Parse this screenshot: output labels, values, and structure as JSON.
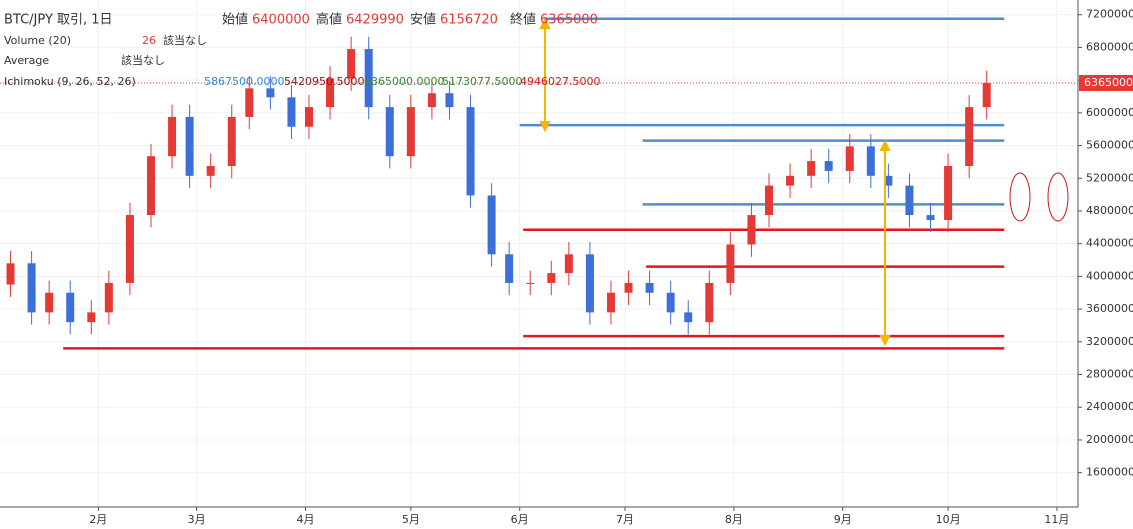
{
  "header": {
    "symbol": "BTC/JPY 取引, 1日",
    "open_label": "始値",
    "open": "6400000",
    "high_label": "高値",
    "high": "6429990",
    "low_label": "安値",
    "low": "6156720",
    "close_label": "終値",
    "close": "6365000",
    "volume_name": "Volume (20)",
    "volume_value": "26",
    "volume_na": "該当なし",
    "average_name": "Average",
    "average_na": "該当なし",
    "ichimoku_name": "Ichimoku (9, 26, 52, 26)",
    "ichimoku_values": [
      "5867500.0000",
      "5420950.5000",
      "6365000.0000",
      "5173077.5000",
      "4946027.5000"
    ]
  },
  "chart_data": {
    "type": "candlestick",
    "up_color": "#e53935",
    "down_color": "#3d6fd8",
    "x": [
      7,
      13,
      18,
      24,
      30,
      35,
      41,
      47,
      53,
      58,
      64,
      70,
      75,
      81,
      87,
      92,
      98,
      104,
      109,
      115,
      121,
      127,
      132,
      138,
      144,
      149,
      155,
      161,
      166,
      172,
      178,
      183,
      189,
      195,
      200,
      206,
      212,
      218,
      223,
      229,
      235,
      240,
      246,
      252,
      257,
      263,
      269,
      274,
      280,
      285
    ],
    "open": [
      3900000,
      4160000,
      3560000,
      3800000,
      3440000,
      3560000,
      3920000,
      4750000,
      5470000,
      5950000,
      5230000,
      5350000,
      5950000,
      6300000,
      6190000,
      5830000,
      6070000,
      6420000,
      6780000,
      6070000,
      5470000,
      6070000,
      6240000,
      6070000,
      4990000,
      4270000,
      3920000,
      3920000,
      4040000,
      4270000,
      3560000,
      3800000,
      3920000,
      3800000,
      3560000,
      3440000,
      3920000,
      4390000,
      4750000,
      5110000,
      5230000,
      5410000,
      5290000,
      5590000,
      5230000,
      5110000,
      4750000,
      4690000,
      5350000,
      6070000
    ],
    "high": [
      4310000,
      4310000,
      3950000,
      3950000,
      3710000,
      4070000,
      4900000,
      5620000,
      6100000,
      6100000,
      5500000,
      6100000,
      6450000,
      6450000,
      6340000,
      6220000,
      6570000,
      6930000,
      6930000,
      6220000,
      6220000,
      6390000,
      6390000,
      6220000,
      5140000,
      4420000,
      4070000,
      4190000,
      4420000,
      4420000,
      3950000,
      4070000,
      4070000,
      3950000,
      3710000,
      4070000,
      4540000,
      4900000,
      5260000,
      5380000,
      5560000,
      5560000,
      5740000,
      5740000,
      5380000,
      5260000,
      4900000,
      5500000,
      6220000,
      6515000
    ],
    "low": [
      3750000,
      3410000,
      3410000,
      3290000,
      3290000,
      3410000,
      3770000,
      4600000,
      5320000,
      5080000,
      5080000,
      5200000,
      5800000,
      6040000,
      5680000,
      5680000,
      5920000,
      6270000,
      5920000,
      5320000,
      5320000,
      5920000,
      5920000,
      4840000,
      4120000,
      3770000,
      3770000,
      3770000,
      3890000,
      3410000,
      3410000,
      3650000,
      3650000,
      3410000,
      3290000,
      3290000,
      3770000,
      4240000,
      4600000,
      4960000,
      5080000,
      5140000,
      5140000,
      5080000,
      4960000,
      4600000,
      4540000,
      4540000,
      5200000,
      5920000
    ],
    "close": [
      4160000,
      3560000,
      3800000,
      3440000,
      3560000,
      3920000,
      4750000,
      5470000,
      5950000,
      5230000,
      5350000,
      5950000,
      6300000,
      6190000,
      5830000,
      6070000,
      6420000,
      6780000,
      6070000,
      5470000,
      6070000,
      6240000,
      6070000,
      4990000,
      4270000,
      3920000,
      3920000,
      4040000,
      4270000,
      3560000,
      3800000,
      3920000,
      3800000,
      3560000,
      3440000,
      3920000,
      4390000,
      4750000,
      5110000,
      5230000,
      5410000,
      5290000,
      5590000,
      5230000,
      5110000,
      4750000,
      4690000,
      5350000,
      6070000,
      6365000
    ],
    "xlim": [
      4,
      311
    ],
    "ylim": [
      1180000,
      7380000
    ],
    "yticks": [
      1600000,
      2000000,
      2400000,
      2800000,
      3200000,
      3600000,
      4000000,
      4400000,
      4800000,
      5200000,
      5600000,
      6000000,
      6400000,
      6800000,
      7200000
    ],
    "xticks": [
      {
        "value": 32,
        "label": "2月"
      },
      {
        "value": 60,
        "label": "3月"
      },
      {
        "value": 91,
        "label": "4月"
      },
      {
        "value": 121,
        "label": "5月"
      },
      {
        "value": 152,
        "label": "6月"
      },
      {
        "value": 182,
        "label": "7月"
      },
      {
        "value": 213,
        "label": "8月"
      },
      {
        "value": 244,
        "label": "9月"
      },
      {
        "value": 274,
        "label": "10月"
      },
      {
        "value": 305,
        "label": "11月"
      }
    ],
    "last_price": 6365000,
    "last_price_label": "6365000",
    "levels": [
      {
        "value": 7150000,
        "from": 159,
        "to": 290,
        "color": "#4a8fd1"
      },
      {
        "value": 5850000,
        "from": 152,
        "to": 290,
        "color": "#4a8fd1"
      },
      {
        "value": 5660000,
        "from": 187,
        "to": 290,
        "color": "#4a8fd1"
      },
      {
        "value": 4880000,
        "from": 187,
        "to": 290,
        "color": "#4a8fd1"
      },
      {
        "value": 4570000,
        "from": 153,
        "to": 290,
        "color": "#e8141b"
      },
      {
        "value": 4120000,
        "from": 188,
        "to": 290,
        "color": "#e8141b"
      },
      {
        "value": 3270000,
        "from": 153,
        "to": 290,
        "color": "#e8141b"
      },
      {
        "value": 3120000,
        "from": 22,
        "to": 290,
        "color": "#e8141b"
      }
    ]
  }
}
